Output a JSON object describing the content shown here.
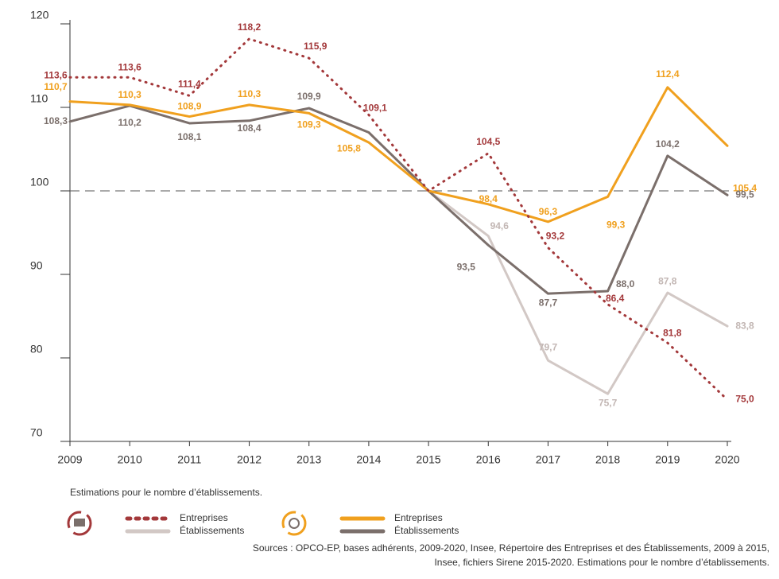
{
  "chart_data": {
    "type": "line",
    "x": [
      2009,
      2010,
      2011,
      2012,
      2013,
      2014,
      2015,
      2016,
      2017,
      2018,
      2019,
      2020
    ],
    "xlim": [
      2009,
      2020
    ],
    "xticks": [
      2009,
      2010,
      2011,
      2012,
      2013,
      2014,
      2015,
      2016,
      2017,
      2018,
      2019,
      2020
    ],
    "ylim": [
      70,
      120
    ],
    "yticks": [
      70,
      80,
      90,
      100,
      110,
      120
    ],
    "reference_line": 100,
    "series": [
      {
        "name": "Entreprises",
        "color": "#a3383a",
        "style": "dotted",
        "values": [
          113.6,
          113.6,
          111.4,
          118.2,
          115.9,
          109.1,
          100,
          104.5,
          93.2,
          86.4,
          81.8,
          75
        ],
        "value_labels": [
          "113,6",
          "113,6",
          "111,4",
          "118,2",
          "115,9",
          "109,1",
          null,
          "104,5",
          "93,2",
          "86,4",
          "81,8",
          "75,0"
        ]
      },
      {
        "name": "Établissements",
        "color": "#d2c8c5",
        "style": "solid",
        "values": [
          null,
          null,
          null,
          null,
          null,
          null,
          100,
          94.6,
          79.7,
          75.7,
          87.8,
          83.8
        ],
        "value_labels": [
          null,
          null,
          null,
          null,
          null,
          null,
          null,
          "94,6",
          "79,7",
          "75,7",
          "87,8",
          "83,8"
        ]
      },
      {
        "name": "Entreprises",
        "color": "#f0a01e",
        "style": "solid",
        "values": [
          110.7,
          110.3,
          108.9,
          110.3,
          109.3,
          105.8,
          100,
          98.4,
          96.3,
          99.3,
          112.4,
          105.4
        ],
        "value_labels": [
          "110,7",
          "110,3",
          "108,9",
          "110,3",
          "109,3",
          "105,8",
          null,
          "98,4",
          "96,3",
          "99,3",
          "112,4",
          "105,4"
        ]
      },
      {
        "name": "Établissements",
        "color": "#7b6f6b",
        "style": "solid",
        "values": [
          108.3,
          110.2,
          108.1,
          108.4,
          109.9,
          107,
          100,
          93.5,
          87.7,
          88,
          104.2,
          99.5
        ],
        "value_labels": [
          "108,3",
          "110,2",
          "108,1",
          "108,4",
          "109,9",
          null,
          null,
          "93,5",
          "87,7",
          "88,0",
          "104,2",
          "99,5"
        ]
      }
    ],
    "note": "Estimations pour le nombre d’établissements.",
    "sources": [
      "Sources : OPCO-EP, bases adhérents, 2009-2020, Insee, Répertoire des Entreprises et des Établissements, 2009 à 2015,",
      "Insee, fichiers Sirene 2015-2020. Estimations pour le nombre d’établissements."
    ]
  }
}
